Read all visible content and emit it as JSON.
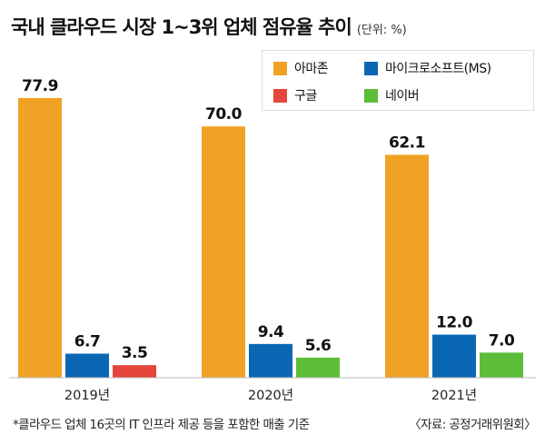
{
  "header": {
    "title": "국내 클라우드 시장 1~3위 업체 점유율 추이",
    "unit": "(단위: %)"
  },
  "chart_data": {
    "type": "bar",
    "categories": [
      "2019년",
      "2020년",
      "2021년"
    ],
    "series": [
      {
        "name": "아마존",
        "color": "#f0a224",
        "values": [
          77.9,
          70.0,
          62.1
        ],
        "labels": [
          "77.9",
          "70.0",
          "62.1"
        ]
      },
      {
        "name": "마이크로소프트(MS)",
        "color": "#0a67b4",
        "values": [
          6.7,
          9.4,
          12.0
        ],
        "labels": [
          "6.7",
          "9.4",
          "12.0"
        ]
      },
      {
        "name": "구글",
        "color": "#e4463b",
        "values": [
          3.5,
          null,
          null
        ],
        "labels": [
          "3.5",
          null,
          null
        ]
      },
      {
        "name": "네이버",
        "color": "#5cbd3b",
        "values": [
          null,
          5.6,
          7.0
        ],
        "labels": [
          null,
          "5.6",
          "7.0"
        ]
      }
    ],
    "title": "국내 클라우드 시장 1~3위 업체 점유율 추이",
    "ylabel": "(단위: %)",
    "ylim": [
      0,
      80
    ],
    "grid": false,
    "legend_position": "top-right"
  },
  "footer": {
    "note": "*클라우드 업체 16곳의 IT 인프라 제공 등을 포함한 매출 기준",
    "source": "〈자료: 공정거래위원회〉"
  }
}
